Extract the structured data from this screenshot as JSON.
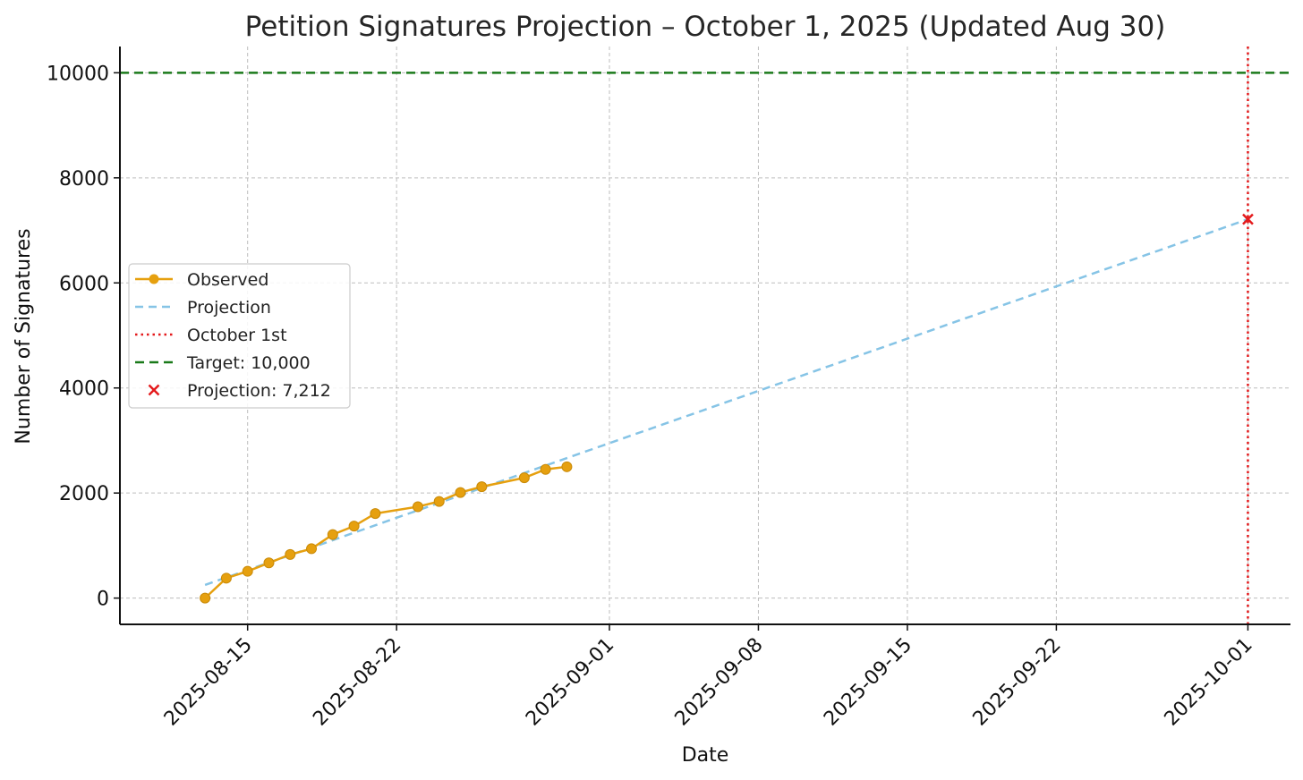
{
  "chart_data": {
    "type": "line",
    "title": "Petition Signatures Projection – October 1, 2025 (Updated Aug 30)",
    "xlabel": "Date",
    "ylabel": "Number of Signatures",
    "x_ticks": [
      "2025-08-15",
      "2025-08-22",
      "2025-09-01",
      "2025-09-08",
      "2025-09-15",
      "2025-09-22",
      "2025-10-01"
    ],
    "y_ticks": [
      0,
      2000,
      4000,
      6000,
      8000,
      10000
    ],
    "xlim": [
      "2025-08-09",
      "2025-10-03"
    ],
    "ylim": [
      -500,
      10500
    ],
    "grid": true,
    "legend_position": "center-left",
    "series": [
      {
        "name": "Observed",
        "style": "solid-line-with-circles",
        "color": "#e6a00f",
        "x": [
          "2025-08-13",
          "2025-08-14",
          "2025-08-15",
          "2025-08-16",
          "2025-08-17",
          "2025-08-18",
          "2025-08-19",
          "2025-08-20",
          "2025-08-21",
          "2025-08-23",
          "2025-08-24",
          "2025-08-25",
          "2025-08-26",
          "2025-08-28",
          "2025-08-29",
          "2025-08-30"
        ],
        "y": [
          0,
          380,
          510,
          670,
          830,
          940,
          1210,
          1370,
          1610,
          1740,
          1840,
          2010,
          2120,
          2290,
          2450,
          2500
        ]
      },
      {
        "name": "Projection",
        "style": "dashed",
        "color": "#86c4e6",
        "x": [
          "2025-08-13",
          "2025-10-01"
        ],
        "y": [
          250,
          7212
        ]
      },
      {
        "name": "October 1st",
        "style": "dotted-vertical",
        "color": "#e41a1c",
        "x": "2025-10-01"
      },
      {
        "name": "Target: 10,000",
        "style": "dashed-horizontal",
        "color": "#1a7a1a",
        "y": 10000
      },
      {
        "name": "Projection: 7,212",
        "style": "x-marker",
        "color": "#e41a1c",
        "x": [
          "2025-10-01"
        ],
        "y": [
          7212
        ]
      }
    ]
  }
}
